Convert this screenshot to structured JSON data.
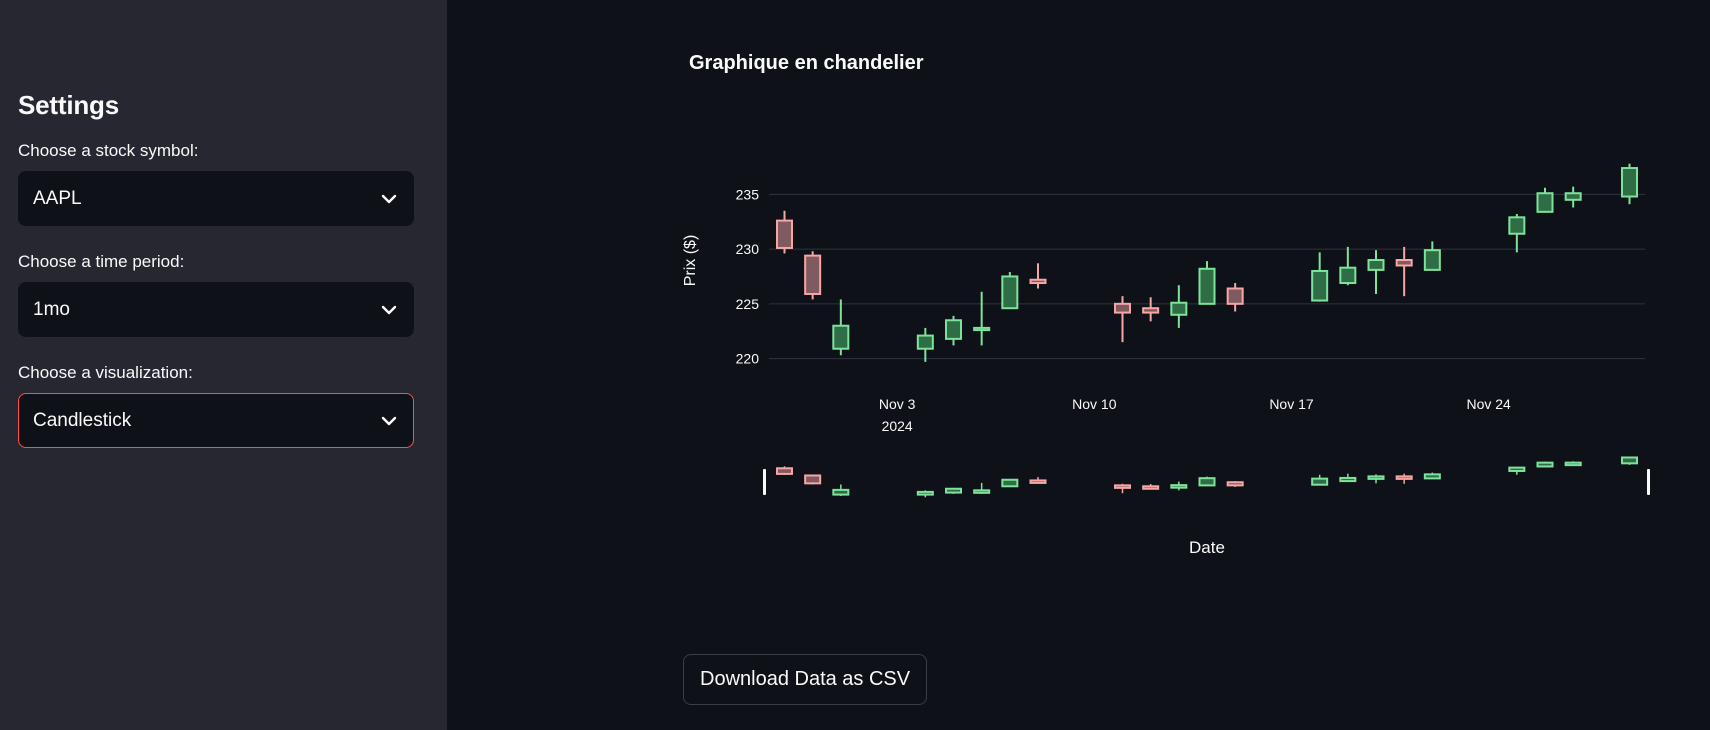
{
  "sidebar": {
    "title": "Settings",
    "symbol": {
      "label": "Choose a stock symbol:",
      "value": "AAPL"
    },
    "period": {
      "label": "Choose a time period:",
      "value": "1mo"
    },
    "viz": {
      "label": "Choose a visualization:",
      "value": "Candlestick"
    }
  },
  "main": {
    "title": "Graphique en chandelier",
    "download_label": "Download Data as CSV"
  },
  "colors": {
    "increasing": "#7ee39a",
    "decreasing": "#f7a6a6",
    "accent": "#ff4b4b"
  },
  "icons": {
    "dropdown": "chevron-down-icon"
  },
  "chart_data": {
    "type": "candlestick",
    "title": "Graphique en chandelier",
    "xlabel": "Date",
    "ylabel": "Prix ($)",
    "ylim": [
      218.5,
      238.5
    ],
    "yticks": [
      220,
      225,
      230,
      235
    ],
    "xrange": [
      "2024-10-30",
      "2024-11-29"
    ],
    "xticks": [
      {
        "date": "2024-11-03",
        "label": "Nov 3",
        "sublabel": "2024"
      },
      {
        "date": "2024-11-10",
        "label": "Nov 10"
      },
      {
        "date": "2024-11-17",
        "label": "Nov 17"
      },
      {
        "date": "2024-11-24",
        "label": "Nov 24"
      }
    ],
    "grid": true,
    "rangeslider": true,
    "candles": [
      {
        "date": "2024-10-30",
        "open": 232.6,
        "high": 233.5,
        "low": 229.6,
        "close": 230.1
      },
      {
        "date": "2024-10-31",
        "open": 229.4,
        "high": 229.8,
        "low": 225.4,
        "close": 225.9
      },
      {
        "date": "2024-11-01",
        "open": 220.9,
        "high": 225.4,
        "low": 220.3,
        "close": 223.0
      },
      {
        "date": "2024-11-04",
        "open": 220.9,
        "high": 222.8,
        "low": 219.7,
        "close": 222.1
      },
      {
        "date": "2024-11-05",
        "open": 221.8,
        "high": 223.9,
        "low": 221.2,
        "close": 223.5
      },
      {
        "date": "2024-11-06",
        "open": 222.6,
        "high": 226.1,
        "low": 221.2,
        "close": 222.8
      },
      {
        "date": "2024-11-07",
        "open": 224.6,
        "high": 227.9,
        "low": 224.6,
        "close": 227.5
      },
      {
        "date": "2024-11-08",
        "open": 227.2,
        "high": 228.7,
        "low": 226.4,
        "close": 226.9
      },
      {
        "date": "2024-11-11",
        "open": 225.0,
        "high": 225.7,
        "low": 221.5,
        "close": 224.2
      },
      {
        "date": "2024-11-12",
        "open": 224.6,
        "high": 225.6,
        "low": 223.4,
        "close": 224.2
      },
      {
        "date": "2024-11-13",
        "open": 224.0,
        "high": 226.7,
        "low": 222.8,
        "close": 225.1
      },
      {
        "date": "2024-11-14",
        "open": 225.0,
        "high": 228.9,
        "low": 225.0,
        "close": 228.2
      },
      {
        "date": "2024-11-15",
        "open": 226.4,
        "high": 226.9,
        "low": 224.3,
        "close": 225.0
      },
      {
        "date": "2024-11-18",
        "open": 225.3,
        "high": 229.7,
        "low": 225.2,
        "close": 228.0
      },
      {
        "date": "2024-11-19",
        "open": 226.9,
        "high": 230.2,
        "low": 226.7,
        "close": 228.3
      },
      {
        "date": "2024-11-20",
        "open": 228.1,
        "high": 229.9,
        "low": 225.9,
        "close": 229.0
      },
      {
        "date": "2024-11-21",
        "open": 229.0,
        "high": 230.2,
        "low": 225.7,
        "close": 228.5
      },
      {
        "date": "2024-11-22",
        "open": 228.1,
        "high": 230.7,
        "low": 228.1,
        "close": 229.9
      },
      {
        "date": "2024-11-25",
        "open": 231.4,
        "high": 233.2,
        "low": 229.7,
        "close": 232.9
      },
      {
        "date": "2024-11-26",
        "open": 233.4,
        "high": 235.6,
        "low": 233.4,
        "close": 235.1
      },
      {
        "date": "2024-11-27",
        "open": 234.5,
        "high": 235.7,
        "low": 233.8,
        "close": 235.1
      },
      {
        "date": "2024-11-29",
        "open": 234.8,
        "high": 237.8,
        "low": 234.1,
        "close": 237.4
      }
    ]
  }
}
